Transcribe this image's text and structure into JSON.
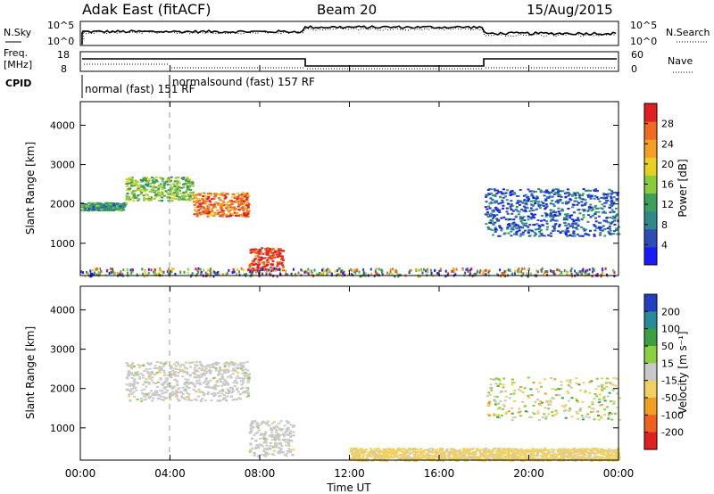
{
  "header": {
    "station": "Adak East (fitACF)",
    "beam": "Beam 20",
    "date": "15/Aug/2015"
  },
  "panels": {
    "noise": {
      "left_label": "N.Sky",
      "right_label": "N.Search",
      "left_ticks": [
        "10^5",
        "10^0"
      ],
      "right_ticks": [
        "10^5",
        "10^0"
      ]
    },
    "freq": {
      "left_label_line1": "Freq.",
      "left_label_line2": "[MHz]",
      "right_label": "Nave",
      "left_ticks": [
        "18",
        "8"
      ],
      "right_ticks": [
        "60",
        "0"
      ]
    },
    "cpid": {
      "label": "CPID",
      "modes": [
        {
          "text": "normal (fast) 151 RF"
        },
        {
          "text": "normalsound (fast) 157 RF"
        }
      ]
    }
  },
  "chart_data": [
    {
      "type": "heatmap",
      "title": "",
      "xlabel": "Time UT",
      "ylabel": "Slant Range [km]",
      "x_ticks": [
        "00:00",
        "04:00",
        "08:00",
        "12:00",
        "16:00",
        "20:00",
        "00:00"
      ],
      "y_ticks": [
        "1000",
        "2000",
        "3000",
        "4000"
      ],
      "ylim": [
        180,
        4600
      ],
      "colorbar": {
        "label": "Power [dB]",
        "ticks": [
          "4",
          "8",
          "12",
          "16",
          "20",
          "24",
          "28"
        ],
        "range": [
          0,
          30
        ],
        "colors": [
          "#1a1aff",
          "#2a4db8",
          "#2e8a8a",
          "#3aa05a",
          "#8acc3a",
          "#e6d020",
          "#f5a020",
          "#f06a20",
          "#e02020"
        ]
      },
      "echo_bands_power_db": [
        {
          "t_start_h": 0.0,
          "t_end_h": 2.0,
          "range_start_km": 1850,
          "range_end_km": 2050,
          "power_db": 10
        },
        {
          "t_start_h": 2.0,
          "t_end_h": 5.0,
          "range_start_km": 2100,
          "range_end_km": 2700,
          "power_db": 14
        },
        {
          "t_start_h": 5.0,
          "t_end_h": 7.5,
          "range_start_km": 1700,
          "range_end_km": 2300,
          "power_db": 24
        },
        {
          "t_start_h": 7.5,
          "t_end_h": 9.0,
          "range_start_km": 300,
          "range_end_km": 900,
          "power_db": 28
        },
        {
          "t_start_h": 18.0,
          "t_end_h": 24.0,
          "range_start_km": 1200,
          "range_end_km": 2400,
          "power_db": 6
        }
      ]
    },
    {
      "type": "heatmap",
      "title": "",
      "xlabel": "Time UT",
      "ylabel": "Slant Range [km]",
      "x_ticks": [
        "00:00",
        "04:00",
        "08:00",
        "12:00",
        "16:00",
        "20:00",
        "00:00"
      ],
      "y_ticks": [
        "1000",
        "2000",
        "3000",
        "4000"
      ],
      "ylim": [
        180,
        4600
      ],
      "colorbar": {
        "label": "Velocity [m s⁻¹]",
        "ticks": [
          "200",
          "100",
          "50",
          "15",
          "-15",
          "-50",
          "-100",
          "-200"
        ],
        "range": [
          -250,
          250
        ],
        "colors": [
          "#2040c0",
          "#2a8a9a",
          "#3aa040",
          "#8ad040",
          "#c8c8c8",
          "#f0d060",
          "#f0a020",
          "#f06020",
          "#e02020"
        ]
      },
      "echo_bands_velocity": [
        {
          "t_start_h": 2.0,
          "t_end_h": 7.5,
          "range_start_km": 1700,
          "range_end_km": 2700,
          "velocity_ms": 0
        },
        {
          "t_start_h": 7.5,
          "t_end_h": 9.5,
          "range_start_km": 300,
          "range_end_km": 1200,
          "velocity_ms": 0
        },
        {
          "t_start_h": 12.0,
          "t_end_h": 24.0,
          "range_start_km": 180,
          "range_end_km": 500,
          "velocity_ms": -50
        }
      ]
    }
  ]
}
